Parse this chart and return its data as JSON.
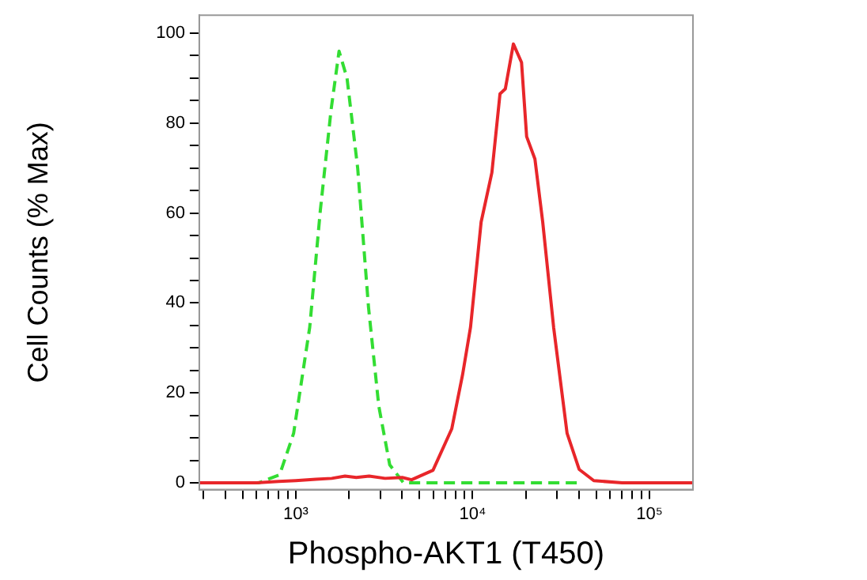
{
  "chart_data": {
    "type": "line",
    "xlabel": "Phospho-AKT1 (T450)",
    "ylabel": "Cell Counts (% Max)",
    "log": "x",
    "grid": false,
    "legend": false,
    "marker": "none",
    "xlim": [
      285,
      176000
    ],
    "ylim": [
      -1.5,
      104
    ],
    "xticks": [
      {
        "value": 300,
        "label": null
      },
      {
        "value": 400,
        "label": null
      },
      {
        "value": 500,
        "label": null
      },
      {
        "value": 600,
        "label": null
      },
      {
        "value": 700,
        "label": null
      },
      {
        "value": 800,
        "label": null
      },
      {
        "value": 900,
        "label": null
      },
      {
        "value": 1000,
        "label": "10³"
      },
      {
        "value": 2000,
        "label": null
      },
      {
        "value": 3000,
        "label": null
      },
      {
        "value": 4000,
        "label": null
      },
      {
        "value": 5000,
        "label": null
      },
      {
        "value": 6000,
        "label": null
      },
      {
        "value": 7000,
        "label": null
      },
      {
        "value": 8000,
        "label": null
      },
      {
        "value": 9000,
        "label": null
      },
      {
        "value": 10000,
        "label": "10⁴"
      },
      {
        "value": 20000,
        "label": null
      },
      {
        "value": 30000,
        "label": null
      },
      {
        "value": 40000,
        "label": null
      },
      {
        "value": 50000,
        "label": null
      },
      {
        "value": 60000,
        "label": null
      },
      {
        "value": 70000,
        "label": null
      },
      {
        "value": 80000,
        "label": null
      },
      {
        "value": 90000,
        "label": null
      },
      {
        "value": 100000,
        "label": "10⁵"
      }
    ],
    "yticks": [
      0,
      {
        "value": 5,
        "label": null
      },
      {
        "value": 10,
        "label": null
      },
      {
        "value": 15,
        "label": null
      },
      20,
      {
        "value": 25,
        "label": null
      },
      {
        "value": 30,
        "label": null
      },
      {
        "value": 35,
        "label": null
      },
      40,
      {
        "value": 45,
        "label": null
      },
      {
        "value": 50,
        "label": null
      },
      {
        "value": 55,
        "label": null
      },
      60,
      {
        "value": 65,
        "label": null
      },
      {
        "value": 70,
        "label": null
      },
      {
        "value": 75,
        "label": null
      },
      80,
      {
        "value": 85,
        "label": null
      },
      {
        "value": 90,
        "label": null
      },
      {
        "value": 95,
        "label": null
      },
      100
    ],
    "series": [
      {
        "color": "#e8262a",
        "line_style": "solid",
        "x": [
          285,
          400,
          600,
          800,
          1000,
          1300,
          1600,
          1900,
          2200,
          2600,
          3200,
          4000,
          4520,
          5970,
          7620,
          8770,
          9730,
          11170,
          12850,
          14280,
          15300,
          17000,
          18900,
          20200,
          22500,
          24900,
          28700,
          34200,
          40000,
          48400,
          70000,
          176000
        ],
        "values": [
          0,
          0,
          0,
          0.3,
          0.5,
          0.8,
          1,
          1.5,
          1.2,
          1.5,
          1,
          1.2,
          0.7,
          2.8,
          12,
          24,
          34.6,
          58,
          69,
          86.5,
          87.6,
          97.6,
          93.5,
          77,
          72,
          58,
          34.6,
          11,
          3,
          0.5,
          0,
          0
        ]
      },
      {
        "color": "#33dd33",
        "line_style": "dashed",
        "x": [
          285,
          500,
          617,
          811,
          973,
          1200,
          1377,
          1585,
          1758,
          1950,
          2240,
          2580,
          2950,
          3400,
          4070,
          10000,
          40000
        ],
        "values": [
          0,
          0,
          0,
          1.8,
          11,
          34.6,
          60.5,
          83,
          96,
          90,
          70,
          39,
          17,
          4,
          0,
          0,
          0
        ]
      }
    ]
  }
}
